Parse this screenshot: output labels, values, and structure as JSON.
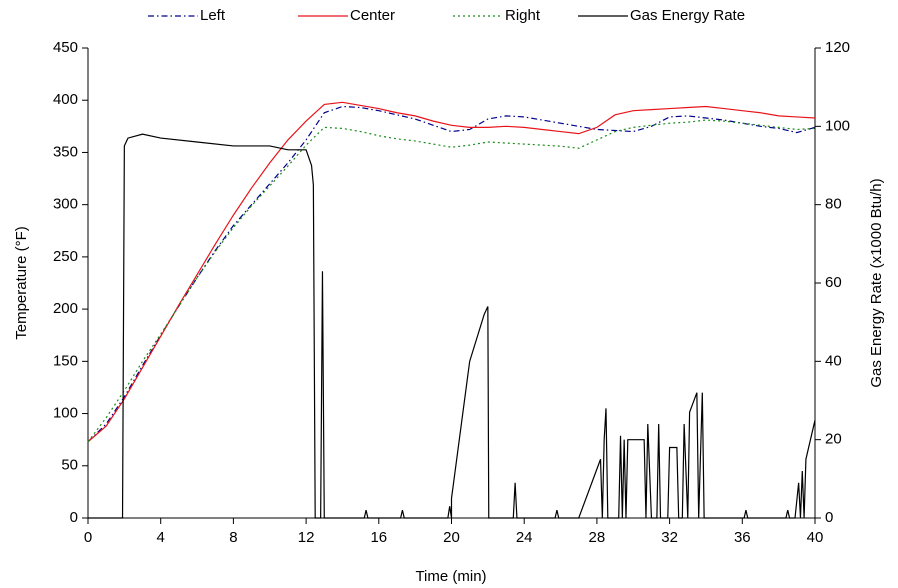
{
  "chart_data": {
    "type": "line",
    "xlabel": "Time (min)",
    "ylabel": "Temperature (°F)",
    "y2label": "Gas Energy Rate (x1000 Btu/h)",
    "legend": "top",
    "xlim": [
      0,
      40
    ],
    "xticks": [
      0,
      4,
      8,
      12,
      16,
      20,
      24,
      28,
      32,
      36,
      40
    ],
    "ylim": [
      0,
      450
    ],
    "yticks": [
      0,
      50,
      100,
      150,
      200,
      250,
      300,
      350,
      400,
      450
    ],
    "y2lim": [
      0,
      120
    ],
    "y2ticks": [
      0,
      20,
      40,
      60,
      80,
      100,
      120
    ],
    "x": [
      0,
      1,
      2,
      3,
      4,
      5,
      6,
      7,
      8,
      9,
      10,
      11,
      12,
      13,
      14,
      15,
      16,
      17,
      18,
      19,
      20,
      21,
      22,
      23,
      24,
      25,
      26,
      27,
      28,
      29,
      30,
      31,
      32,
      33,
      34,
      35,
      36,
      37,
      38,
      39,
      40
    ],
    "series": [
      {
        "name": "Left",
        "color": "#00008b",
        "dash": "dashdot",
        "values": [
          73,
          90,
          116,
          146,
          175,
          203,
          230,
          256,
          280,
          300,
          320,
          340,
          362,
          388,
          394,
          393,
          390,
          386,
          382,
          376,
          370,
          372,
          382,
          385,
          384,
          381,
          378,
          375,
          372,
          371,
          370,
          375,
          384,
          385,
          383,
          381,
          378,
          375,
          373,
          369,
          374
        ]
      },
      {
        "name": "Center",
        "color": "#e8141a",
        "dash": "solid",
        "values": [
          73,
          88,
          114,
          144,
          174,
          204,
          233,
          262,
          290,
          316,
          340,
          362,
          380,
          396,
          398,
          395,
          392,
          388,
          385,
          380,
          376,
          374,
          374,
          375,
          374,
          372,
          370,
          368,
          374,
          386,
          390,
          391,
          392,
          393,
          394,
          392,
          390,
          388,
          385,
          384,
          383
        ]
      },
      {
        "name": "Right",
        "color": "#1a8a1a",
        "dash": "dotted",
        "values": [
          73,
          96,
          122,
          150,
          176,
          203,
          230,
          255,
          278,
          299,
          318,
          337,
          357,
          374,
          373,
          370,
          366,
          363,
          361,
          358,
          355,
          357,
          360,
          359,
          358,
          357,
          356,
          354,
          362,
          370,
          374,
          376,
          378,
          379,
          381,
          380,
          378,
          376,
          374,
          372,
          373
        ]
      },
      {
        "name": "Gas Energy Rate",
        "color": "#000000",
        "dash": "solid",
        "axis": "y2",
        "x": [
          0,
          1.9,
          2.0,
          2.2,
          3,
          4,
          6,
          8,
          10,
          11,
          12,
          12.3,
          12.4,
          12.5,
          12.8,
          12.9,
          13.0,
          15.2,
          15.3,
          15.4,
          17.2,
          17.3,
          17.4,
          19.8,
          19.9,
          20,
          20,
          21,
          21.8,
          22,
          22.05,
          23.4,
          23.5,
          23.6,
          25.7,
          25.8,
          25.9,
          27,
          28.2,
          28.3,
          28.4,
          28.5,
          28.6,
          29.2,
          29.3,
          29.4,
          29.5,
          29.6,
          29.7,
          30.6,
          30.7,
          30.8,
          31,
          31.3,
          31.4,
          31.5,
          31.9,
          32,
          32.4,
          32.5,
          32.7,
          32.8,
          33.0,
          33.1,
          33.5,
          33.6,
          33.8,
          33.9,
          36.1,
          36.2,
          36.3,
          38.4,
          38.5,
          38.6,
          38.9,
          39.1,
          39.2,
          39.3,
          39.4,
          39.5,
          40
        ],
        "values": [
          0,
          0,
          95,
          97,
          98,
          97,
          96,
          95,
          95,
          94,
          94,
          90,
          85,
          0,
          0,
          63,
          0,
          0,
          2,
          0,
          0,
          2,
          0,
          0,
          3,
          0,
          5,
          40,
          52,
          54,
          0,
          0,
          9,
          0,
          0,
          2,
          0,
          0,
          15,
          0,
          20,
          28,
          0,
          0,
          21,
          0,
          20,
          0,
          20,
          20,
          0,
          24,
          0,
          0,
          24,
          0,
          0,
          18,
          18,
          0,
          0,
          24,
          0,
          27,
          32,
          0,
          32,
          0,
          0,
          2,
          0,
          0,
          2,
          0,
          0,
          9,
          0,
          12,
          0,
          15,
          25
        ]
      }
    ]
  }
}
